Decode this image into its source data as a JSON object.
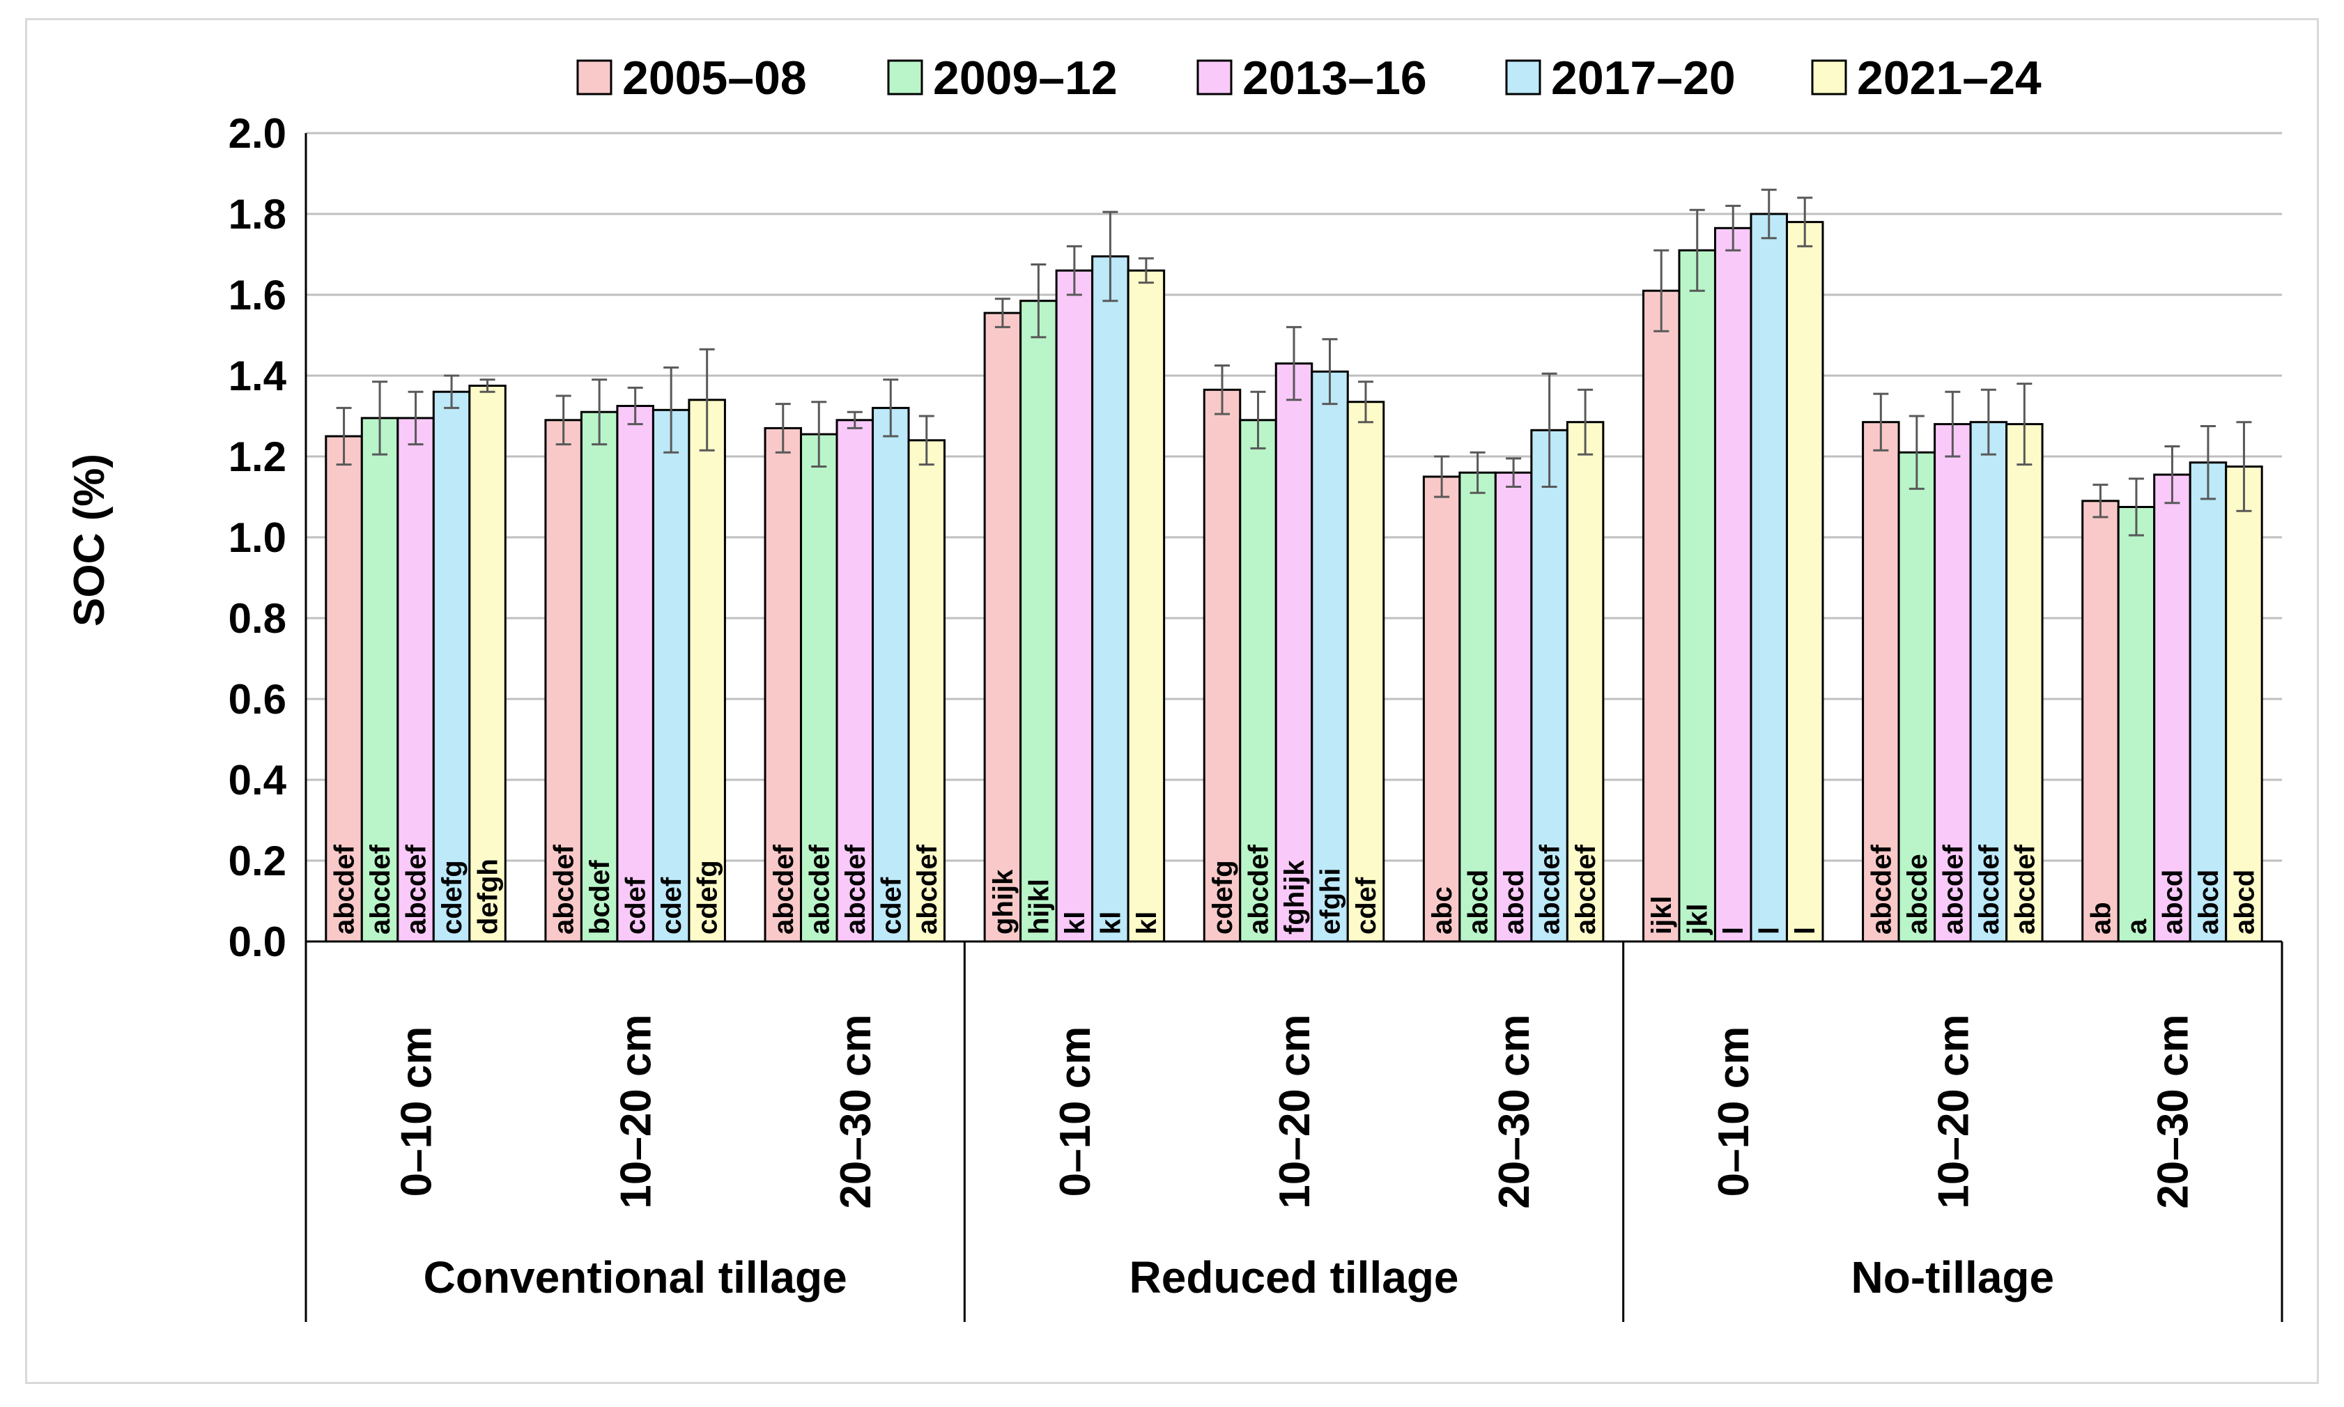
{
  "chart_data": {
    "type": "bar",
    "title": "",
    "xlabel": "",
    "ylabel": "SOC (%)",
    "ylim": [
      0,
      2.0
    ],
    "ytick_step": 0.2,
    "yticks": [
      "0.0",
      "0.2",
      "0.4",
      "0.6",
      "0.8",
      "1.0",
      "1.2",
      "1.4",
      "1.6",
      "1.8",
      "2.0"
    ],
    "grid": true,
    "legend_position": "top",
    "groups": [
      "Conventional tillage",
      "Reduced tillage",
      "No-tillage"
    ],
    "categories": [
      "0–10 cm",
      "10–20 cm",
      "20–30 cm",
      "0–10 cm",
      "10–20 cm",
      "20–30 cm",
      "0–10 cm",
      "10–20 cm",
      "20–30 cm"
    ],
    "series": [
      {
        "name": "2005–08",
        "color": "#f9c9c9",
        "values": [
          1.25,
          1.29,
          1.27,
          1.555,
          1.365,
          1.15,
          1.61,
          1.285,
          1.09
        ],
        "errors": [
          0.07,
          0.06,
          0.06,
          0.035,
          0.06,
          0.05,
          0.1,
          0.07,
          0.04
        ],
        "letters": [
          "abcdef",
          "abcdef",
          "abcdef",
          "ghijk",
          "cdefg",
          "abc",
          "ijkl",
          "abcdef",
          "ab"
        ]
      },
      {
        "name": "2009–12",
        "color": "#b9f5c9",
        "values": [
          1.295,
          1.31,
          1.255,
          1.585,
          1.29,
          1.16,
          1.71,
          1.21,
          1.075
        ],
        "errors": [
          0.09,
          0.08,
          0.08,
          0.09,
          0.07,
          0.05,
          0.1,
          0.09,
          0.07
        ],
        "letters": [
          "abcdef",
          "bcdef",
          "abcdef",
          "hijkl",
          "abcdef",
          "abcd",
          "jkl",
          "abcde",
          "a"
        ]
      },
      {
        "name": "2013–16",
        "color": "#f9c9f9",
        "values": [
          1.295,
          1.325,
          1.29,
          1.66,
          1.43,
          1.16,
          1.765,
          1.28,
          1.155
        ],
        "errors": [
          0.065,
          0.045,
          0.02,
          0.06,
          0.09,
          0.035,
          0.055,
          0.08,
          0.07
        ],
        "letters": [
          "abcdef",
          "cdef",
          "abcdef",
          "kl",
          "fghijk",
          "abcd",
          "l",
          "abcdef",
          "abcd"
        ]
      },
      {
        "name": "2017–20",
        "color": "#bde9f9",
        "values": [
          1.36,
          1.315,
          1.32,
          1.695,
          1.41,
          1.265,
          1.8,
          1.285,
          1.185
        ],
        "errors": [
          0.04,
          0.105,
          0.07,
          0.11,
          0.08,
          0.14,
          0.06,
          0.08,
          0.09
        ],
        "letters": [
          "cdefg",
          "cdef",
          "cdef",
          "kl",
          "efghi",
          "abcdef",
          "l",
          "abcdef",
          "abcd"
        ]
      },
      {
        "name": "2021–24",
        "color": "#fdfbc9",
        "values": [
          1.375,
          1.34,
          1.24,
          1.66,
          1.335,
          1.285,
          1.78,
          1.28,
          1.175
        ],
        "errors": [
          0.015,
          0.125,
          0.06,
          0.03,
          0.05,
          0.08,
          0.06,
          0.1,
          0.11
        ],
        "letters": [
          "defgh",
          "cdefg",
          "abcdef",
          "kl",
          "cdef",
          "abcdef",
          "l",
          "abcdef",
          "abcd"
        ]
      }
    ]
  }
}
